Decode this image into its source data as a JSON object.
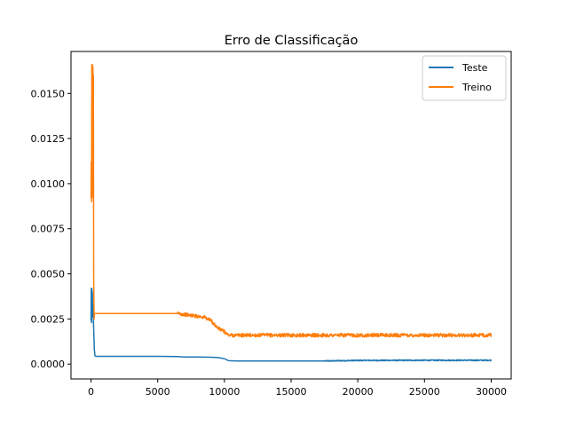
{
  "chart_data": {
    "type": "line",
    "title": "Erro de Classificação",
    "xlabel": "",
    "ylabel": "",
    "xlim": [
      -1500,
      31500
    ],
    "ylim": [
      -0.000825,
      0.017325
    ],
    "xticks": [
      0,
      5000,
      10000,
      15000,
      20000,
      25000,
      30000
    ],
    "xtick_labels": [
      "0",
      "5000",
      "10000",
      "15000",
      "20000",
      "25000",
      "30000"
    ],
    "yticks": [
      0.0,
      0.0025,
      0.005,
      0.0075,
      0.01,
      0.0125,
      0.015
    ],
    "ytick_labels": [
      "0.0000",
      "0.0025",
      "0.0050",
      "0.0075",
      "0.0100",
      "0.0125",
      "0.0150"
    ],
    "grid": false,
    "legend_position": "top-right",
    "series": [
      {
        "name": "Teste",
        "color": "#1f77b4",
        "x": [
          0,
          20,
          40,
          60,
          80,
          100,
          120,
          150,
          200,
          250,
          300,
          400,
          1000,
          3000,
          5000,
          6500,
          7000,
          8000,
          9000,
          9500,
          10000,
          10300,
          11000,
          15000,
          17500,
          20000,
          25000,
          30000
        ],
        "y": [
          0.0024,
          0.0042,
          0.0023,
          0.0042,
          0.0026,
          0.004,
          0.0028,
          0.0032,
          0.002,
          0.0008,
          0.00045,
          0.00043,
          0.00043,
          0.00043,
          0.00043,
          0.00042,
          0.00039,
          0.00039,
          0.00038,
          0.00036,
          0.0003,
          0.00019,
          0.00017,
          0.00017,
          0.00017,
          0.0002,
          0.00021,
          0.00021
        ],
        "noise_from_x": 17500,
        "noise_to_x": 30000,
        "noise_amplitude": 3e-05
      },
      {
        "name": "Treino",
        "color": "#ff7f0e",
        "x": [
          0,
          20,
          40,
          60,
          80,
          100,
          120,
          140,
          160,
          180,
          200,
          230,
          260,
          300,
          500,
          2000,
          4000,
          6000,
          6500,
          7000,
          8000,
          8500,
          9000,
          9500,
          10000,
          10300,
          11000,
          15000,
          20000,
          25000,
          30000
        ],
        "y": [
          0.0092,
          0.0112,
          0.009,
          0.0166,
          0.0092,
          0.0166,
          0.0093,
          0.0165,
          0.012,
          0.016,
          0.005,
          0.0025,
          0.0028,
          0.0028,
          0.0028,
          0.0028,
          0.0028,
          0.0028,
          0.0028,
          0.00275,
          0.00265,
          0.0026,
          0.0024,
          0.002,
          0.0018,
          0.0016,
          0.0016,
          0.0016,
          0.0016,
          0.0016,
          0.0016
        ],
        "noise_from_x": 6500,
        "noise_to_x": 30000,
        "noise_amplitude": 0.0001
      }
    ]
  }
}
